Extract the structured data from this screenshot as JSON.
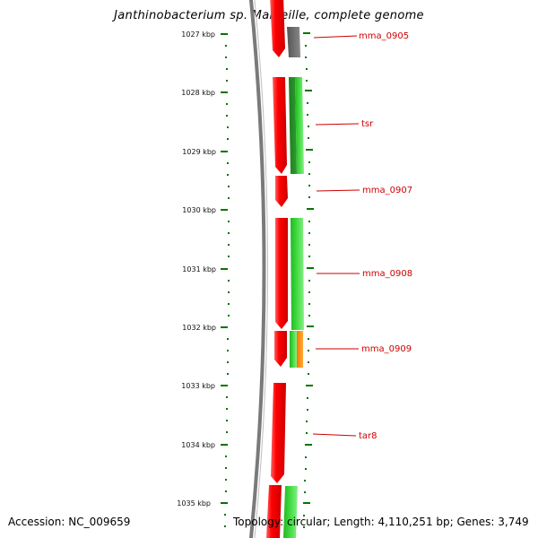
{
  "title": "Janthinobacterium sp. Marseille, complete genome",
  "footer": {
    "accession": "Accession: NC_009659",
    "topology": "Topology: circular; Length: 4,110,251 bp; Genes: 3,749"
  },
  "ruler": {
    "ticks": [
      "1027 kbp",
      "1028 kbp",
      "1029 kbp",
      "1030 kbp",
      "1031 kbp",
      "1032 kbp",
      "1033 kbp",
      "1034 kbp",
      "1035 kbp"
    ]
  },
  "genes": [
    {
      "label": "mma_0905"
    },
    {
      "label": "tsr"
    },
    {
      "label": "mma_0907"
    },
    {
      "label": "mma_0908"
    },
    {
      "label": "mma_0909"
    },
    {
      "label": "tar8"
    }
  ],
  "colors": {
    "gene_cds": "#ff0000",
    "hit_green": "#33cc33",
    "hit_dark_green": "#1a7a1a",
    "hit_grey": "#666666",
    "hit_orange": "#ff8800",
    "ruler": "#006600",
    "backbone": "#808080",
    "label": "#cc0000"
  }
}
